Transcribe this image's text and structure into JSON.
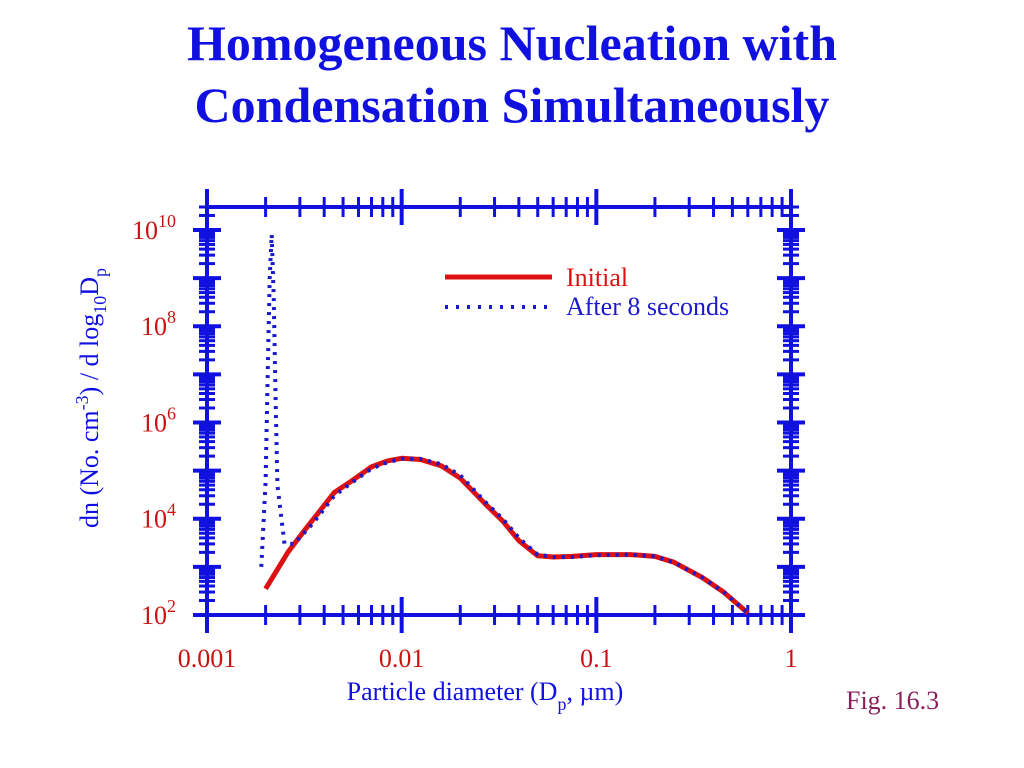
{
  "slide": {
    "title_line1": "Homogeneous Nucleation with",
    "title_line2": "Condensation Simultaneously",
    "figure_label": "Fig. 16.3"
  },
  "colors": {
    "title": "#1010e0",
    "axes": "#1010e0",
    "tick_labels": "#cc1111",
    "initial_series": "#dd1111",
    "after_series": "#1a1acc",
    "figure_label": "#8a1f5a"
  },
  "chart_data": {
    "type": "line",
    "x_scale": "log",
    "y_scale": "log",
    "xlim": [
      0.001,
      1
    ],
    "ylim": [
      100,
      30000000000
    ],
    "xlabel": {
      "prefix": "Particle diameter (D",
      "sub": "p",
      "suffix": ",  µm)"
    },
    "ylabel": {
      "part1": "dn (No.  cm",
      "sup": "-3",
      "part2": ") / d log",
      "sub1": "10",
      "part3": "D",
      "sub2": "p"
    },
    "x_tick_labels": [
      "0.001",
      "0.01",
      "0.1",
      "1"
    ],
    "x_tick_values": [
      0.001,
      0.01,
      0.1,
      1
    ],
    "y_tick_labels": [
      {
        "base": "10",
        "exp": "2",
        "value": 100
      },
      {
        "base": "10",
        "exp": "4",
        "value": 10000
      },
      {
        "base": "10",
        "exp": "6",
        "value": 1000000
      },
      {
        "base": "10",
        "exp": "8",
        "value": 100000000
      },
      {
        "base": "10",
        "exp": "10",
        "value": 10000000000
      }
    ],
    "legend_position": "top-right",
    "series": [
      {
        "name": "Initial",
        "style": "solid",
        "x": [
          0.002,
          0.0026,
          0.0032,
          0.0045,
          0.0055,
          0.007,
          0.0085,
          0.01,
          0.0125,
          0.016,
          0.02,
          0.027,
          0.033,
          0.04,
          0.05,
          0.06,
          0.075,
          0.1,
          0.15,
          0.2,
          0.25,
          0.35,
          0.45,
          0.6
        ],
        "y": [
          350,
          2000,
          6000,
          35000,
          60000,
          120000,
          160000,
          180000,
          170000,
          125000,
          70000,
          20000,
          9000,
          3500,
          1700,
          1600,
          1650,
          1800,
          1800,
          1650,
          1250,
          600,
          300,
          110
        ]
      },
      {
        "name": "After 8 seconds",
        "style": "dotted",
        "x": [
          0.0019,
          0.002,
          0.00205,
          0.0021,
          0.00215,
          0.0022,
          0.00225,
          0.0023,
          0.0025,
          0.0028,
          0.0035,
          0.0045,
          0.0055,
          0.007,
          0.0085,
          0.01,
          0.0125,
          0.016,
          0.02,
          0.027,
          0.033,
          0.04,
          0.05,
          0.06,
          0.075,
          0.1,
          0.15,
          0.2,
          0.25,
          0.35,
          0.45,
          0.6
        ],
        "y": [
          1000,
          60000,
          10000000,
          1000000000,
          8000000000,
          400000000,
          3000000,
          50000,
          3000,
          3000,
          8000,
          30000,
          55000,
          110000,
          150000,
          175000,
          175000,
          135000,
          80000,
          22000,
          10000,
          4000,
          1800,
          1600,
          1600,
          1750,
          1800,
          1650,
          1250,
          600,
          300,
          110
        ]
      }
    ]
  }
}
